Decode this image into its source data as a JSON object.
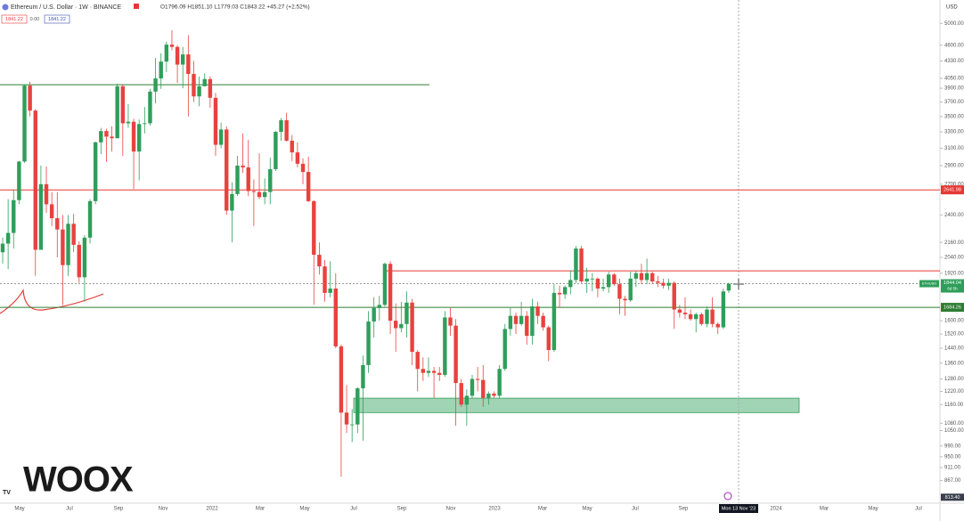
{
  "chart_data": {
    "type": "candlestick",
    "header": {
      "title": "Ethereum / U.S. Dollar · 1W · BINANCE",
      "ohlc": "O1796.09 H1851.10 L1779.03 C1843.22 +45.27 (+2.52%)",
      "boxes": [
        "1841.22",
        "0.00",
        "1841.22"
      ]
    },
    "currency": "USD",
    "log_scale": true,
    "ylim": [
      795,
      5470
    ],
    "yticks": [
      {
        "value": 5000,
        "label": "5000.00"
      },
      {
        "value": 4600,
        "label": "4600.00"
      },
      {
        "value": 4330,
        "label": "4330.00"
      },
      {
        "value": 4050,
        "label": "4050.00"
      },
      {
        "value": 3900,
        "label": "3900.00"
      },
      {
        "value": 3700,
        "label": "3700.00"
      },
      {
        "value": 3500,
        "label": "3500.00"
      },
      {
        "value": 3300,
        "label": "3300.00"
      },
      {
        "value": 3100,
        "label": "3100.00"
      },
      {
        "value": 2900,
        "label": "2900.00"
      },
      {
        "value": 2700,
        "label": "2700.00"
      },
      {
        "value": 2400,
        "label": "2400.00"
      },
      {
        "value": 2160,
        "label": "2160.00"
      },
      {
        "value": 2040,
        "label": "2040.00"
      },
      {
        "value": 1920,
        "label": "1920.00"
      },
      {
        "value": 1600,
        "label": "1600.00"
      },
      {
        "value": 1520,
        "label": "1520.00"
      },
      {
        "value": 1440,
        "label": "1440.00"
      },
      {
        "value": 1360,
        "label": "1360.00"
      },
      {
        "value": 1280,
        "label": "1280.00"
      },
      {
        "value": 1220,
        "label": "1220.00"
      },
      {
        "value": 1160,
        "label": "1160.00"
      },
      {
        "value": 1080,
        "label": "1080.00"
      },
      {
        "value": 1050,
        "label": "1050.00"
      },
      {
        "value": 990,
        "label": "990.00"
      },
      {
        "value": 950,
        "label": "950.00"
      },
      {
        "value": 911,
        "label": "911.00"
      },
      {
        "value": 867,
        "label": "867.00"
      }
    ],
    "x_labels": [
      "May",
      "Jul",
      "Sep",
      "Nov",
      "2022",
      "Mar",
      "May",
      "Jul",
      "Sep",
      "Nov",
      "2023",
      "Mar",
      "May",
      "Jul",
      "Sep",
      "Mon 13 Nov '23",
      "2024",
      "Mar",
      "May",
      "Jul"
    ],
    "up_color": "#2f9e5a",
    "down_color": "#e8423f",
    "levels": [
      {
        "value": 3953,
        "color": "#2e7d32"
      },
      {
        "value": 2641.98,
        "label": "2641.98",
        "color": "#e53935"
      },
      {
        "value": 1937,
        "color": "#e53935"
      },
      {
        "value": 1684.26,
        "label": "1684.26",
        "color": "#2e7d32"
      }
    ],
    "current_price": {
      "value": 1844.04,
      "label": "1844.04",
      "symbol": "ETHUSD",
      "countdown": "6d 5h",
      "color": "#2f9e5a"
    },
    "low_marker": {
      "value": 813.4,
      "label": "813.40"
    },
    "zone": {
      "low": 1125,
      "high": 1189,
      "color": "#2f9e5a"
    },
    "candles": [
      [
        2080,
        2200,
        1990,
        2150
      ],
      [
        2150,
        2550,
        1950,
        2240
      ],
      [
        2240,
        2640,
        2110,
        2540
      ],
      [
        2540,
        2950,
        2500,
        2945
      ],
      [
        2945,
        3950,
        2930,
        3940
      ],
      [
        3940,
        4000,
        3500,
        3580
      ],
      [
        3580,
        3600,
        1900,
        2100
      ],
      [
        2100,
        2900,
        2100,
        2700
      ],
      [
        2700,
        2890,
        2420,
        2500
      ],
      [
        2500,
        2620,
        2300,
        2370
      ],
      [
        2370,
        2620,
        2040,
        2270
      ],
      [
        2270,
        2400,
        1700,
        1980
      ],
      [
        1980,
        2400,
        1900,
        2320
      ],
      [
        2320,
        2410,
        2080,
        2140
      ],
      [
        2140,
        2170,
        1850,
        1890
      ],
      [
        1890,
        2220,
        1720,
        2200
      ],
      [
        2200,
        2550,
        2150,
        2530
      ],
      [
        2530,
        3180,
        2500,
        3170
      ],
      [
        3170,
        3350,
        3030,
        3310
      ],
      [
        3310,
        3340,
        2940,
        3240
      ],
      [
        3240,
        3370,
        3060,
        3220
      ],
      [
        3220,
        3970,
        3220,
        3930
      ],
      [
        3930,
        3960,
        3010,
        3410
      ],
      [
        3410,
        3670,
        3350,
        3430
      ],
      [
        3430,
        3470,
        2650,
        3060
      ],
      [
        3060,
        3460,
        2740,
        3400
      ],
      [
        3400,
        3630,
        3280,
        3410
      ],
      [
        3410,
        3890,
        3380,
        3850
      ],
      [
        3850,
        4380,
        3680,
        4050
      ],
      [
        4050,
        4460,
        3890,
        4320
      ],
      [
        4320,
        4660,
        4150,
        4610
      ],
      [
        4610,
        4870,
        4510,
        4570
      ],
      [
        4570,
        4600,
        3980,
        4270
      ],
      [
        4270,
        4570,
        3900,
        4440
      ],
      [
        4440,
        4780,
        3500,
        4120
      ],
      [
        4120,
        4330,
        3700,
        3780
      ],
      [
        3780,
        4080,
        3640,
        3930
      ],
      [
        3930,
        4130,
        3930,
        4040
      ],
      [
        4040,
        4080,
        3620,
        3760
      ],
      [
        3760,
        3830,
        3010,
        3140
      ],
      [
        3140,
        3420,
        3100,
        3330
      ],
      [
        3330,
        3370,
        2400,
        2440
      ],
      [
        2440,
        2720,
        2160,
        2600
      ],
      [
        2600,
        3010,
        2580,
        2900
      ],
      [
        2900,
        3280,
        2820,
        2880
      ],
      [
        2880,
        3200,
        2580,
        2630
      ],
      [
        2630,
        2750,
        2300,
        2620
      ],
      [
        2620,
        3040,
        2550,
        2570
      ],
      [
        2570,
        2760,
        2500,
        2620
      ],
      [
        2620,
        2990,
        2500,
        2860
      ],
      [
        2860,
        3310,
        2840,
        3300
      ],
      [
        3300,
        3480,
        3190,
        3450
      ],
      [
        3450,
        3550,
        3180,
        3190
      ],
      [
        3190,
        3260,
        2950,
        3050
      ],
      [
        3050,
        3170,
        2880,
        2920
      ],
      [
        2920,
        2980,
        2700,
        2830
      ],
      [
        2830,
        3000,
        2520,
        2530
      ],
      [
        2530,
        2540,
        1700,
        2060
      ],
      [
        2060,
        2160,
        1910,
        1970
      ],
      [
        1970,
        2020,
        1720,
        1780
      ],
      [
        1780,
        2010,
        1750,
        1810
      ],
      [
        1810,
        1920,
        1440,
        1450
      ],
      [
        1450,
        1460,
        880,
        1125
      ],
      [
        1125,
        1250,
        1040,
        1075
      ],
      [
        1075,
        1140,
        1005,
        1075
      ],
      [
        1075,
        1240,
        1040,
        1235
      ],
      [
        1235,
        1400,
        1010,
        1350
      ],
      [
        1350,
        1660,
        1310,
        1595
      ],
      [
        1595,
        1750,
        1500,
        1680
      ],
      [
        1680,
        1760,
        1600,
        1700
      ],
      [
        1700,
        2000,
        1690,
        1990
      ],
      [
        1990,
        2010,
        1520,
        1600
      ],
      [
        1600,
        1710,
        1420,
        1555
      ],
      [
        1555,
        1720,
        1530,
        1580
      ],
      [
        1580,
        1790,
        1500,
        1715
      ],
      [
        1715,
        1740,
        1350,
        1420
      ],
      [
        1420,
        1430,
        1220,
        1330
      ],
      [
        1330,
        1390,
        1270,
        1310
      ],
      [
        1310,
        1390,
        1290,
        1320
      ],
      [
        1320,
        1340,
        1190,
        1310
      ],
      [
        1310,
        1340,
        1270,
        1300
      ],
      [
        1300,
        1660,
        1290,
        1620
      ],
      [
        1620,
        1680,
        1510,
        1570
      ],
      [
        1570,
        1610,
        1070,
        1260
      ],
      [
        1260,
        1280,
        1150,
        1160
      ],
      [
        1160,
        1230,
        1070,
        1200
      ],
      [
        1200,
        1300,
        1190,
        1280
      ],
      [
        1280,
        1340,
        1220,
        1275
      ],
      [
        1275,
        1350,
        1150,
        1190
      ],
      [
        1190,
        1220,
        1160,
        1210
      ],
      [
        1210,
        1220,
        1190,
        1200
      ],
      [
        1200,
        1350,
        1190,
        1330
      ],
      [
        1330,
        1580,
        1320,
        1550
      ],
      [
        1550,
        1680,
        1510,
        1630
      ],
      [
        1630,
        1650,
        1520,
        1580
      ],
      [
        1580,
        1720,
        1570,
        1630
      ],
      [
        1630,
        1660,
        1460,
        1510
      ],
      [
        1510,
        1740,
        1460,
        1690
      ],
      [
        1690,
        1720,
        1580,
        1630
      ],
      [
        1630,
        1650,
        1540,
        1560
      ],
      [
        1560,
        1570,
        1370,
        1430
      ],
      [
        1430,
        1840,
        1420,
        1780
      ],
      [
        1780,
        1830,
        1680,
        1770
      ],
      [
        1770,
        1830,
        1740,
        1820
      ],
      [
        1820,
        1940,
        1770,
        1870
      ],
      [
        1870,
        2130,
        1850,
        2110
      ],
      [
        2110,
        2130,
        1850,
        1860
      ],
      [
        1860,
        1960,
        1780,
        1880
      ],
      [
        1880,
        1920,
        1790,
        1880
      ],
      [
        1880,
        1890,
        1750,
        1810
      ],
      [
        1810,
        1880,
        1790,
        1820
      ],
      [
        1820,
        1930,
        1780,
        1910
      ],
      [
        1910,
        1920,
        1830,
        1840
      ],
      [
        1840,
        1880,
        1640,
        1740
      ],
      [
        1740,
        1760,
        1630,
        1730
      ],
      [
        1730,
        1930,
        1720,
        1880
      ],
      [
        1880,
        1940,
        1820,
        1920
      ],
      [
        1920,
        1990,
        1840,
        1870
      ],
      [
        1870,
        2030,
        1840,
        1920
      ],
      [
        1920,
        1930,
        1840,
        1860
      ],
      [
        1860,
        1900,
        1820,
        1850
      ],
      [
        1850,
        1880,
        1810,
        1830
      ],
      [
        1830,
        1880,
        1800,
        1850
      ],
      [
        1850,
        1860,
        1550,
        1670
      ],
      [
        1670,
        1700,
        1620,
        1650
      ],
      [
        1650,
        1750,
        1610,
        1640
      ],
      [
        1640,
        1670,
        1600,
        1610
      ],
      [
        1610,
        1650,
        1530,
        1640
      ],
      [
        1640,
        1650,
        1570,
        1580
      ],
      [
        1580,
        1690,
        1560,
        1670
      ],
      [
        1670,
        1750,
        1560,
        1580
      ],
      [
        1580,
        1590,
        1520,
        1560
      ],
      [
        1560,
        1810,
        1550,
        1790
      ],
      [
        1796.09,
        1851.1,
        1779.03,
        1843.22
      ]
    ],
    "logo": {
      "mark": "TV",
      "brand": "WOOX"
    }
  }
}
